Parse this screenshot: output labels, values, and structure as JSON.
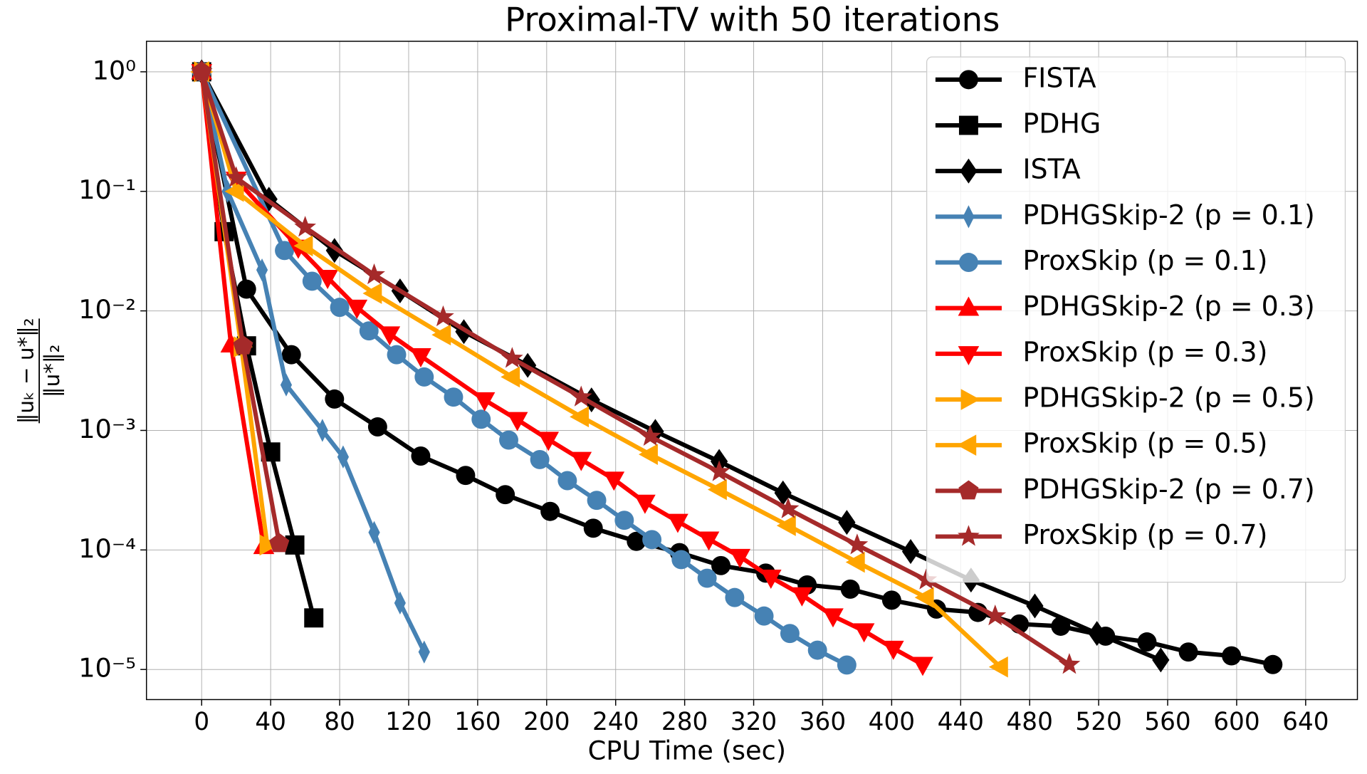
{
  "chart_data": {
    "type": "line",
    "title": "Proximal-TV with 50 iterations",
    "xlabel": "CPU Time (sec)",
    "ylabel_numerator": "‖uₖ − u*‖₂",
    "ylabel_denominator": "‖u*‖₂",
    "xlim": [
      -32,
      670
    ],
    "ylim": [
      5.6e-06,
      1.8
    ],
    "yscale": "log",
    "grid": true,
    "legend": "upper right",
    "xticks": [
      0,
      40,
      80,
      120,
      160,
      200,
      240,
      280,
      320,
      360,
      400,
      440,
      480,
      520,
      560,
      600,
      640
    ],
    "yticks": [
      {
        "value": 1,
        "label": "10⁰"
      },
      {
        "value": 0.1,
        "label": "10⁻¹"
      },
      {
        "value": 0.01,
        "label": "10⁻²"
      },
      {
        "value": 0.001,
        "label": "10⁻³"
      },
      {
        "value": 0.0001,
        "label": "10⁻⁴"
      },
      {
        "value": 1e-05,
        "label": "10⁻⁵"
      }
    ],
    "series": [
      {
        "name": "FISTA",
        "color": "#000000",
        "marker": "circle",
        "x": [
          0,
          26,
          52,
          77,
          102,
          127,
          153,
          176,
          202,
          227,
          252,
          277,
          301,
          327,
          351,
          376,
          400,
          426,
          450,
          474,
          498,
          524,
          548,
          572,
          597,
          621
        ],
        "values": [
          1,
          0.0152,
          0.0043,
          0.00183,
          0.00107,
          0.00061,
          0.00042,
          0.00029,
          0.00021,
          0.000152,
          0.000118,
          9.5e-05,
          7.4e-05,
          6.4e-05,
          5.1e-05,
          4.7e-05,
          3.8e-05,
          3.2e-05,
          3e-05,
          2.4e-05,
          2.3e-05,
          1.9e-05,
          1.7e-05,
          1.4e-05,
          1.3e-05,
          1.1e-05
        ]
      },
      {
        "name": "PDHG",
        "color": "#000000",
        "marker": "square",
        "x": [
          0,
          13,
          26,
          40,
          54,
          65
        ],
        "values": [
          1,
          0.046,
          0.0051,
          0.00066,
          0.00011,
          2.7e-05
        ]
      },
      {
        "name": "ISTA",
        "color": "#000000",
        "marker": "diamond",
        "x": [
          0,
          39,
          77,
          115,
          152,
          189,
          226,
          263,
          300,
          337,
          374,
          411,
          446,
          483,
          519,
          556
        ],
        "values": [
          1,
          0.086,
          0.032,
          0.0147,
          0.0067,
          0.0035,
          0.0018,
          0.00098,
          0.00055,
          0.0003,
          0.00017,
          9.7e-05,
          5.6e-05,
          3.4e-05,
          2e-05,
          1.2e-05
        ]
      },
      {
        "name": "PDHGSkip-2 (p = 0.1)",
        "color": "#4682b4",
        "marker": "thin_diamond",
        "x": [
          0,
          15,
          35,
          49,
          70,
          82,
          100,
          115,
          129
        ],
        "values": [
          1,
          0.1,
          0.022,
          0.0024,
          0.001,
          0.0006,
          0.00014,
          3.6e-05,
          1.4e-05
        ]
      },
      {
        "name": "ProxSkip (p = 0.1)",
        "color": "#4682b4",
        "marker": "circle",
        "x": [
          0,
          48,
          64,
          80,
          97,
          113,
          129,
          146,
          162,
          178,
          196,
          212,
          229,
          245,
          261,
          278,
          293,
          309,
          326,
          341,
          357,
          374
        ],
        "values": [
          1,
          0.032,
          0.0177,
          0.0107,
          0.0068,
          0.0043,
          0.0028,
          0.0019,
          0.00124,
          0.00083,
          0.00057,
          0.00038,
          0.00026,
          0.000177,
          0.000122,
          8.3e-05,
          5.8e-05,
          4e-05,
          2.8e-05,
          2e-05,
          1.45e-05,
          1.09e-05
        ]
      },
      {
        "name": "PDHGSkip-2 (p = 0.3)",
        "color": "#ff0000",
        "marker": "triangle_up",
        "x": [
          0,
          17,
          36
        ],
        "values": [
          1,
          0.0052,
          0.000107
        ]
      },
      {
        "name": "ProxSkip (p = 0.3)",
        "color": "#ff0000",
        "marker": "triangle_down",
        "x": [
          0,
          20,
          56,
          73,
          90,
          109,
          127,
          164,
          183,
          201,
          220,
          239,
          257,
          276,
          294,
          312,
          330,
          348,
          366,
          384,
          401,
          418
        ],
        "values": [
          1,
          0.126,
          0.034,
          0.019,
          0.0107,
          0.0064,
          0.0042,
          0.0018,
          0.00123,
          0.00084,
          0.00057,
          0.00039,
          0.00025,
          0.000173,
          0.000123,
          8.8e-05,
          5.9e-05,
          4.2e-05,
          2.8e-05,
          2.1e-05,
          1.5e-05,
          1.1e-05
        ]
      },
      {
        "name": "PDHGSkip-2 (p = 0.5)",
        "color": "#ffa500",
        "marker": "triangle_right",
        "x": [
          0,
          23,
          38
        ],
        "values": [
          1,
          0.005,
          0.00011
        ]
      },
      {
        "name": "ProxSkip (p = 0.5)",
        "color": "#ffa500",
        "marker": "triangle_left",
        "x": [
          0,
          20,
          60,
          100,
          140,
          180,
          220,
          260,
          300,
          340,
          380,
          420,
          463
        ],
        "values": [
          1,
          0.1,
          0.035,
          0.014,
          0.0063,
          0.0028,
          0.0013,
          0.00063,
          0.00032,
          0.00016,
          7.9e-05,
          4e-05,
          1.05e-05
        ]
      },
      {
        "name": "PDHGSkip-2 (p = 0.7)",
        "color": "#a52a2a",
        "marker": "pentagon",
        "x": [
          0,
          24,
          45
        ],
        "values": [
          1,
          0.0051,
          0.000113
        ]
      },
      {
        "name": "ProxSkip (p = 0.7)",
        "color": "#a52a2a",
        "marker": "star",
        "x": [
          0,
          20,
          60,
          100,
          140,
          180,
          220,
          260,
          300,
          340,
          380,
          420,
          460,
          503
        ],
        "values": [
          1,
          0.13,
          0.05,
          0.02,
          0.0089,
          0.004,
          0.0019,
          0.00089,
          0.00045,
          0.00022,
          0.00011,
          5.6e-05,
          2.8e-05,
          1.1e-05
        ]
      }
    ]
  }
}
